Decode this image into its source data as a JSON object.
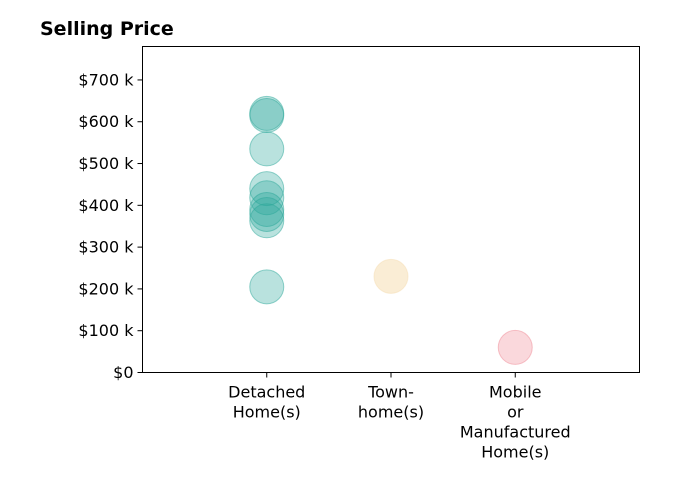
{
  "chart_data": {
    "type": "scatter",
    "title": "Selling Price",
    "xlabel": "",
    "ylabel": "",
    "categories": [
      [
        "Detached",
        "Home(s)"
      ],
      [
        "Town-",
        "home(s)"
      ],
      [
        "Mobile",
        "or",
        "Manufactured",
        "Home(s)"
      ]
    ],
    "yticks": [
      {
        "value": 0,
        "label": "$0"
      },
      {
        "value": 100000,
        "label": "$100 k"
      },
      {
        "value": 200000,
        "label": "$200 k"
      },
      {
        "value": 300000,
        "label": "$300 k"
      },
      {
        "value": 400000,
        "label": "$400 k"
      },
      {
        "value": 500000,
        "label": "$500 k"
      },
      {
        "value": 600000,
        "label": "$600 k"
      },
      {
        "value": 700000,
        "label": "$700 k"
      }
    ],
    "ylim": [
      0,
      780000
    ],
    "xlim": [
      -1,
      3
    ],
    "grid": false,
    "series": [
      {
        "category_index": 0,
        "color": "#2ba89a",
        "values": [
          620000,
          615000,
          535000,
          440000,
          418000,
          390000,
          378000,
          363000,
          205000
        ]
      },
      {
        "category_index": 1,
        "color": "#f5deb3",
        "values": [
          230000
        ]
      },
      {
        "category_index": 2,
        "color": "#f08a96",
        "values": [
          60000
        ]
      }
    ]
  }
}
